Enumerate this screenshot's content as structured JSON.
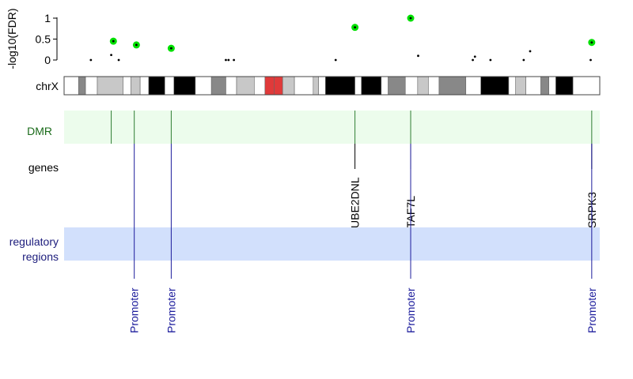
{
  "track": {
    "fdr_axis": {
      "label": "-log10(FDR)",
      "ticks": [
        {
          "value": 0,
          "label": "0"
        },
        {
          "value": 0.5,
          "label": "0.5"
        },
        {
          "value": 1,
          "label": "1"
        }
      ],
      "range": [
        0,
        1
      ]
    },
    "chromosome_label": "chrX",
    "dmr_label": "DMR",
    "genes_label": "genes",
    "regulatory_label_line1": "regulatory",
    "regulatory_label_line2": "regions"
  },
  "colors": {
    "significant_point": "#00e000",
    "point": "#000000",
    "dmr_band": "#ecfcec",
    "dmr_line": "#2e7d32",
    "dmr_text": "#1a6b1a",
    "regulatory_band": "#d2e0fc",
    "regulatory_line": "#1c1c9c",
    "regulatory_text": "#1c1c7c",
    "centromere": "#e03a3a"
  },
  "chart_data": {
    "type": "scatter",
    "ylabel": "-log10(FDR)",
    "ylim": [
      0,
      1
    ],
    "points": [
      {
        "pos": 0.05,
        "value": 0.0,
        "significant": false
      },
      {
        "pos": 0.092,
        "value": 0.45,
        "significant": true
      },
      {
        "pos": 0.088,
        "value": 0.12,
        "significant": false
      },
      {
        "pos": 0.102,
        "value": 0.0,
        "significant": false
      },
      {
        "pos": 0.135,
        "value": 0.36,
        "significant": true
      },
      {
        "pos": 0.2,
        "value": 0.28,
        "significant": true
      },
      {
        "pos": 0.302,
        "value": 0.0,
        "significant": false
      },
      {
        "pos": 0.307,
        "value": 0.0,
        "significant": false
      },
      {
        "pos": 0.317,
        "value": 0.0,
        "significant": false
      },
      {
        "pos": 0.507,
        "value": 0.0,
        "significant": false
      },
      {
        "pos": 0.543,
        "value": 0.78,
        "significant": true
      },
      {
        "pos": 0.647,
        "value": 1.0,
        "significant": true
      },
      {
        "pos": 0.661,
        "value": 0.1,
        "significant": false
      },
      {
        "pos": 0.763,
        "value": 0.0,
        "significant": false
      },
      {
        "pos": 0.767,
        "value": 0.08,
        "significant": false
      },
      {
        "pos": 0.796,
        "value": 0.0,
        "significant": false
      },
      {
        "pos": 0.858,
        "value": 0.0,
        "significant": false
      },
      {
        "pos": 0.87,
        "value": 0.21,
        "significant": false
      },
      {
        "pos": 0.983,
        "value": 0.0,
        "significant": false
      },
      {
        "pos": 0.985,
        "value": 0.42,
        "significant": true
      }
    ],
    "ideogram": [
      {
        "start": 0.0,
        "end": 0.027,
        "stain": "white"
      },
      {
        "start": 0.027,
        "end": 0.04,
        "stain": "gray"
      },
      {
        "start": 0.04,
        "end": 0.062,
        "stain": "white"
      },
      {
        "start": 0.062,
        "end": 0.11,
        "stain": "lightgray"
      },
      {
        "start": 0.11,
        "end": 0.125,
        "stain": "white"
      },
      {
        "start": 0.125,
        "end": 0.142,
        "stain": "lightgray"
      },
      {
        "start": 0.142,
        "end": 0.158,
        "stain": "white"
      },
      {
        "start": 0.158,
        "end": 0.188,
        "stain": "black"
      },
      {
        "start": 0.188,
        "end": 0.205,
        "stain": "white"
      },
      {
        "start": 0.205,
        "end": 0.245,
        "stain": "black"
      },
      {
        "start": 0.245,
        "end": 0.275,
        "stain": "white"
      },
      {
        "start": 0.275,
        "end": 0.302,
        "stain": "gray"
      },
      {
        "start": 0.302,
        "end": 0.322,
        "stain": "white"
      },
      {
        "start": 0.322,
        "end": 0.355,
        "stain": "lightgray"
      },
      {
        "start": 0.355,
        "end": 0.375,
        "stain": "white"
      },
      {
        "start": 0.375,
        "end": 0.392,
        "stain": "centromere"
      },
      {
        "start": 0.392,
        "end": 0.408,
        "stain": "centromere"
      },
      {
        "start": 0.408,
        "end": 0.43,
        "stain": "lightgray"
      },
      {
        "start": 0.43,
        "end": 0.465,
        "stain": "white"
      },
      {
        "start": 0.465,
        "end": 0.475,
        "stain": "lightgray"
      },
      {
        "start": 0.475,
        "end": 0.488,
        "stain": "white"
      },
      {
        "start": 0.488,
        "end": 0.543,
        "stain": "black"
      },
      {
        "start": 0.543,
        "end": 0.555,
        "stain": "white"
      },
      {
        "start": 0.555,
        "end": 0.592,
        "stain": "black"
      },
      {
        "start": 0.592,
        "end": 0.605,
        "stain": "white"
      },
      {
        "start": 0.605,
        "end": 0.637,
        "stain": "gray"
      },
      {
        "start": 0.637,
        "end": 0.66,
        "stain": "white"
      },
      {
        "start": 0.66,
        "end": 0.68,
        "stain": "lightgray"
      },
      {
        "start": 0.68,
        "end": 0.7,
        "stain": "white"
      },
      {
        "start": 0.7,
        "end": 0.75,
        "stain": "gray"
      },
      {
        "start": 0.75,
        "end": 0.778,
        "stain": "white"
      },
      {
        "start": 0.778,
        "end": 0.83,
        "stain": "black"
      },
      {
        "start": 0.83,
        "end": 0.843,
        "stain": "white"
      },
      {
        "start": 0.843,
        "end": 0.862,
        "stain": "lightgray"
      },
      {
        "start": 0.862,
        "end": 0.89,
        "stain": "white"
      },
      {
        "start": 0.89,
        "end": 0.905,
        "stain": "gray"
      },
      {
        "start": 0.905,
        "end": 0.918,
        "stain": "white"
      },
      {
        "start": 0.918,
        "end": 0.95,
        "stain": "black"
      },
      {
        "start": 0.95,
        "end": 1.0,
        "stain": "white"
      }
    ],
    "dmrs": [
      {
        "pos": 0.088
      },
      {
        "pos": 0.131
      },
      {
        "pos": 0.2
      },
      {
        "pos": 0.543
      },
      {
        "pos": 0.647
      },
      {
        "pos": 0.985
      }
    ],
    "genes": [
      {
        "pos": 0.543,
        "label": "UBE2DNL"
      },
      {
        "pos": 0.647,
        "label": "TAF7L"
      },
      {
        "pos": 0.985,
        "label": "SRPK3"
      }
    ],
    "regulatory": [
      {
        "pos": 0.131,
        "label": "Promoter"
      },
      {
        "pos": 0.2,
        "label": "Promoter"
      },
      {
        "pos": 0.647,
        "label": "Promoter"
      },
      {
        "pos": 0.985,
        "label": "Promoter"
      }
    ]
  }
}
